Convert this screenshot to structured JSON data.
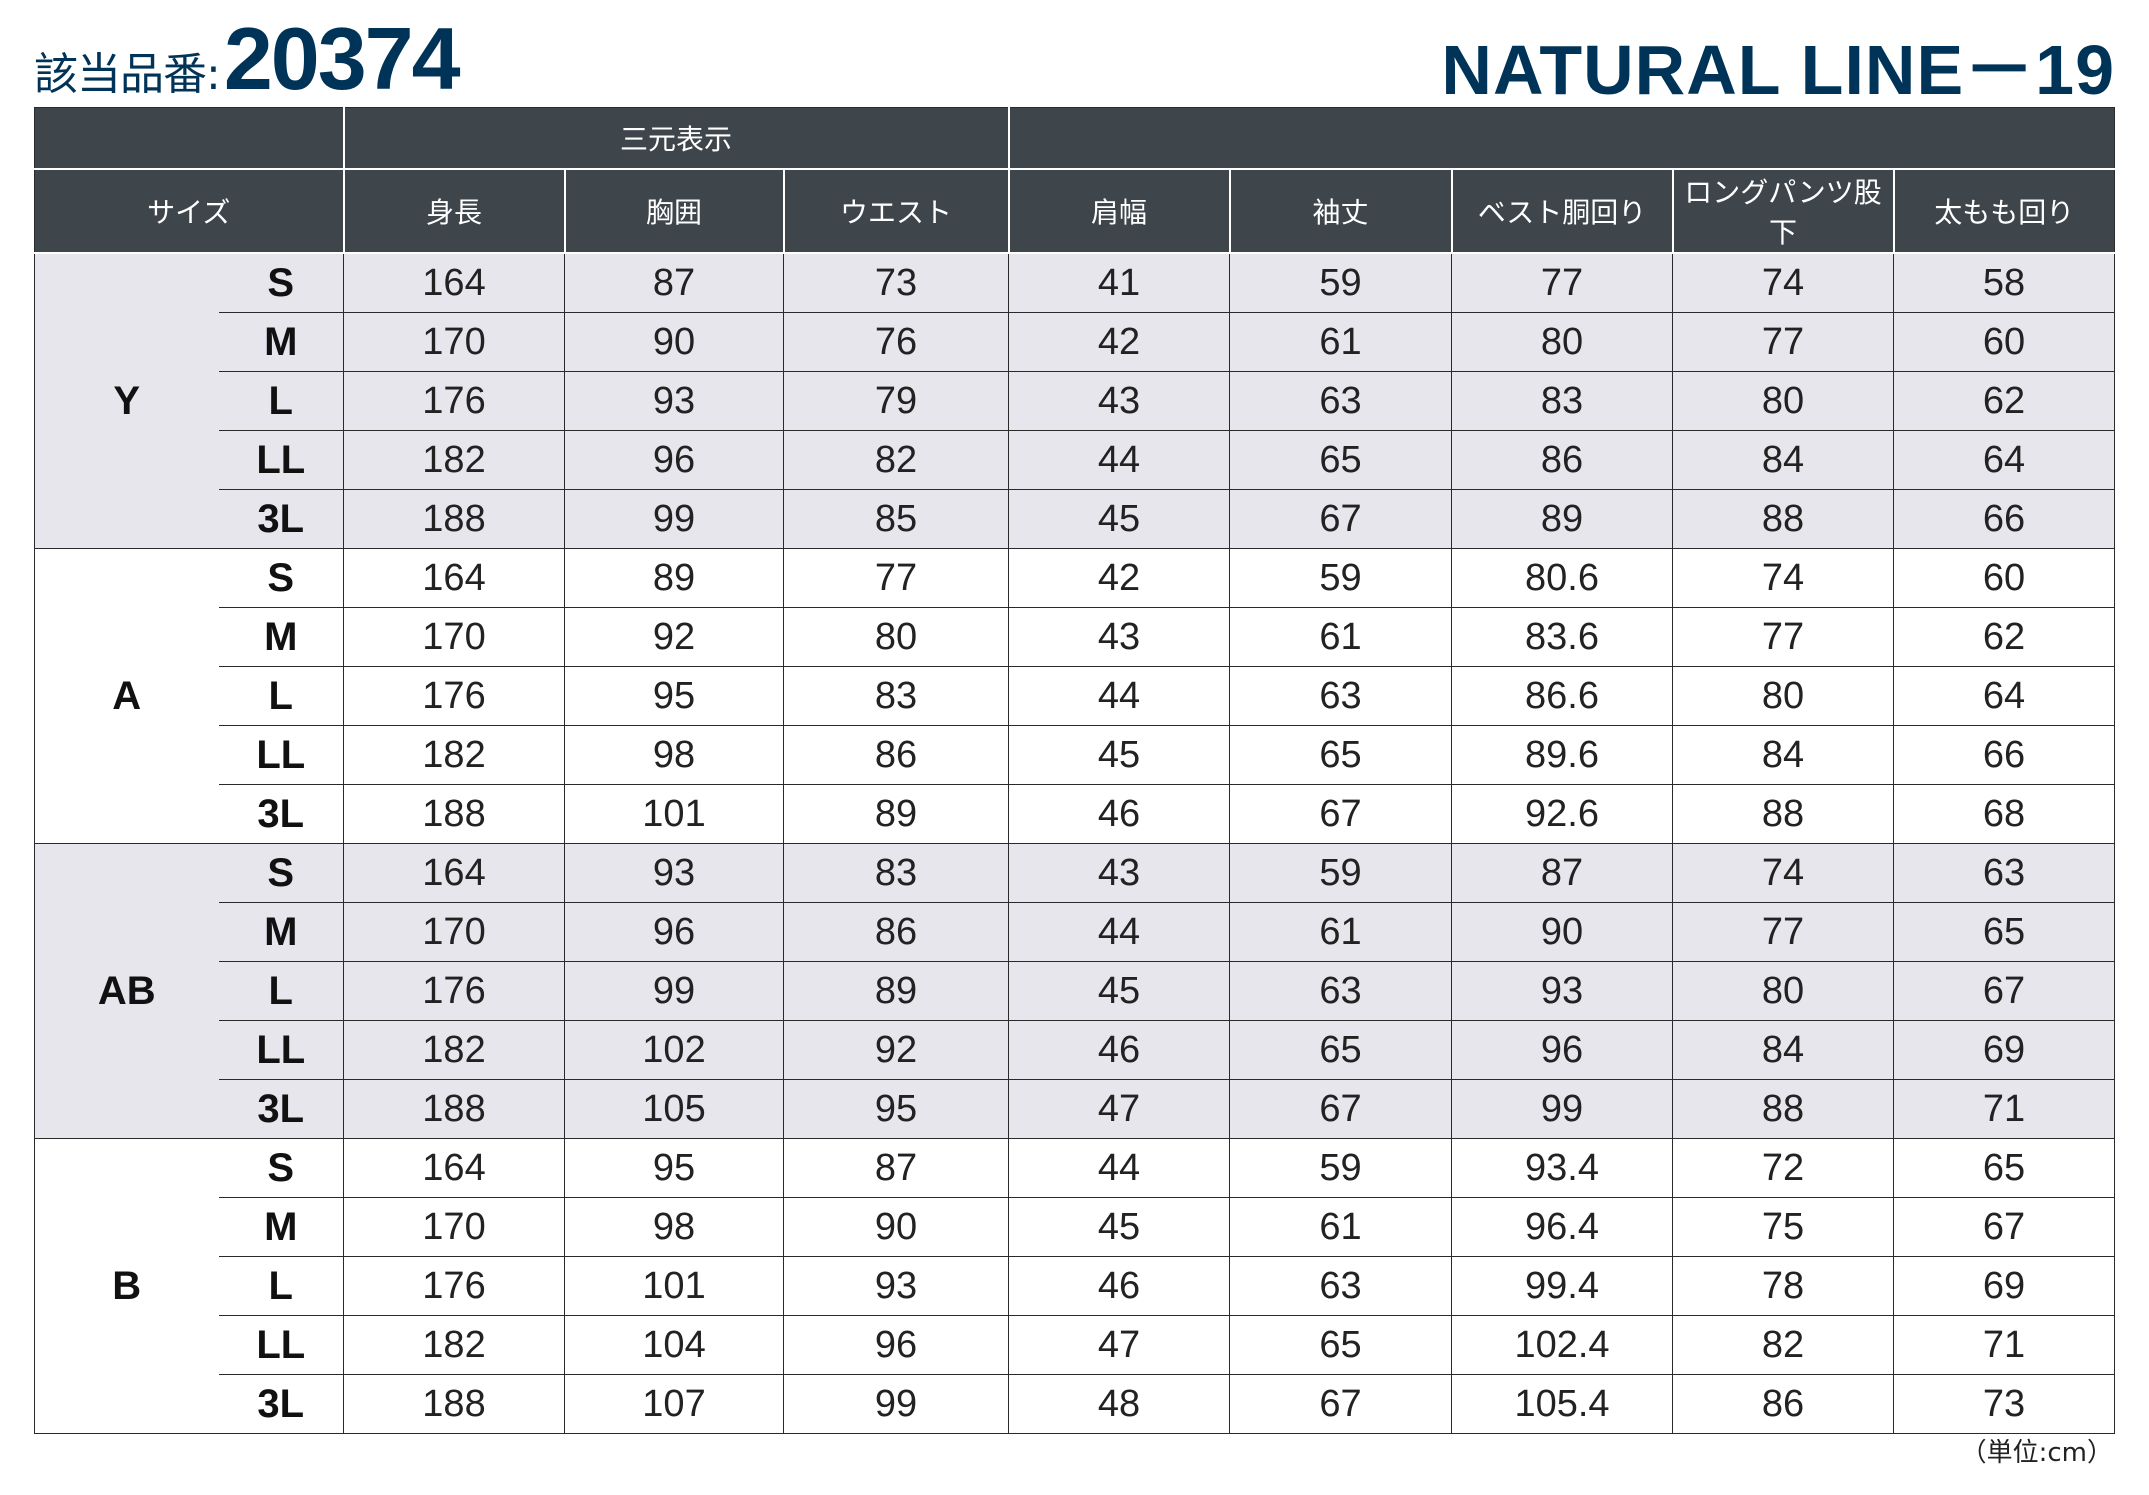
{
  "header": {
    "label": "該当品番:",
    "product_number": "20374",
    "series_name": "NATURAL LINE－19"
  },
  "table": {
    "group_header": "三元表示",
    "size_header": "サイズ",
    "columns": [
      "身長",
      "胸囲",
      "ウエスト",
      "肩幅",
      "袖丈",
      "ベスト胴回り",
      "ロングパンツ股下",
      "太もも回り"
    ],
    "groups": [
      {
        "name": "Y",
        "shaded": true,
        "rows": [
          {
            "size": "S",
            "values": [
              "164",
              "87",
              "73",
              "41",
              "59",
              "77",
              "74",
              "58"
            ]
          },
          {
            "size": "M",
            "values": [
              "170",
              "90",
              "76",
              "42",
              "61",
              "80",
              "77",
              "60"
            ]
          },
          {
            "size": "L",
            "values": [
              "176",
              "93",
              "79",
              "43",
              "63",
              "83",
              "80",
              "62"
            ]
          },
          {
            "size": "LL",
            "values": [
              "182",
              "96",
              "82",
              "44",
              "65",
              "86",
              "84",
              "64"
            ]
          },
          {
            "size": "3L",
            "values": [
              "188",
              "99",
              "85",
              "45",
              "67",
              "89",
              "88",
              "66"
            ]
          }
        ]
      },
      {
        "name": "A",
        "shaded": false,
        "rows": [
          {
            "size": "S",
            "values": [
              "164",
              "89",
              "77",
              "42",
              "59",
              "80.6",
              "74",
              "60"
            ]
          },
          {
            "size": "M",
            "values": [
              "170",
              "92",
              "80",
              "43",
              "61",
              "83.6",
              "77",
              "62"
            ]
          },
          {
            "size": "L",
            "values": [
              "176",
              "95",
              "83",
              "44",
              "63",
              "86.6",
              "80",
              "64"
            ]
          },
          {
            "size": "LL",
            "values": [
              "182",
              "98",
              "86",
              "45",
              "65",
              "89.6",
              "84",
              "66"
            ]
          },
          {
            "size": "3L",
            "values": [
              "188",
              "101",
              "89",
              "46",
              "67",
              "92.6",
              "88",
              "68"
            ]
          }
        ]
      },
      {
        "name": "AB",
        "shaded": true,
        "rows": [
          {
            "size": "S",
            "values": [
              "164",
              "93",
              "83",
              "43",
              "59",
              "87",
              "74",
              "63"
            ]
          },
          {
            "size": "M",
            "values": [
              "170",
              "96",
              "86",
              "44",
              "61",
              "90",
              "77",
              "65"
            ]
          },
          {
            "size": "L",
            "values": [
              "176",
              "99",
              "89",
              "45",
              "63",
              "93",
              "80",
              "67"
            ]
          },
          {
            "size": "LL",
            "values": [
              "182",
              "102",
              "92",
              "46",
              "65",
              "96",
              "84",
              "69"
            ]
          },
          {
            "size": "3L",
            "values": [
              "188",
              "105",
              "95",
              "47",
              "67",
              "99",
              "88",
              "71"
            ]
          }
        ]
      },
      {
        "name": "B",
        "shaded": false,
        "rows": [
          {
            "size": "S",
            "values": [
              "164",
              "95",
              "87",
              "44",
              "59",
              "93.4",
              "72",
              "65"
            ]
          },
          {
            "size": "M",
            "values": [
              "170",
              "98",
              "90",
              "45",
              "61",
              "96.4",
              "75",
              "67"
            ]
          },
          {
            "size": "L",
            "values": [
              "176",
              "101",
              "93",
              "46",
              "63",
              "99.4",
              "78",
              "69"
            ]
          },
          {
            "size": "LL",
            "values": [
              "182",
              "104",
              "96",
              "47",
              "65",
              "102.4",
              "82",
              "71"
            ]
          },
          {
            "size": "3L",
            "values": [
              "188",
              "107",
              "99",
              "48",
              "67",
              "105.4",
              "86",
              "73"
            ]
          }
        ]
      }
    ]
  },
  "footer": {
    "unit_note": "（単位:cm）"
  },
  "colors": {
    "brand": "#003358",
    "header_bg": "#3e454b",
    "shade": "#e6e6ec"
  }
}
